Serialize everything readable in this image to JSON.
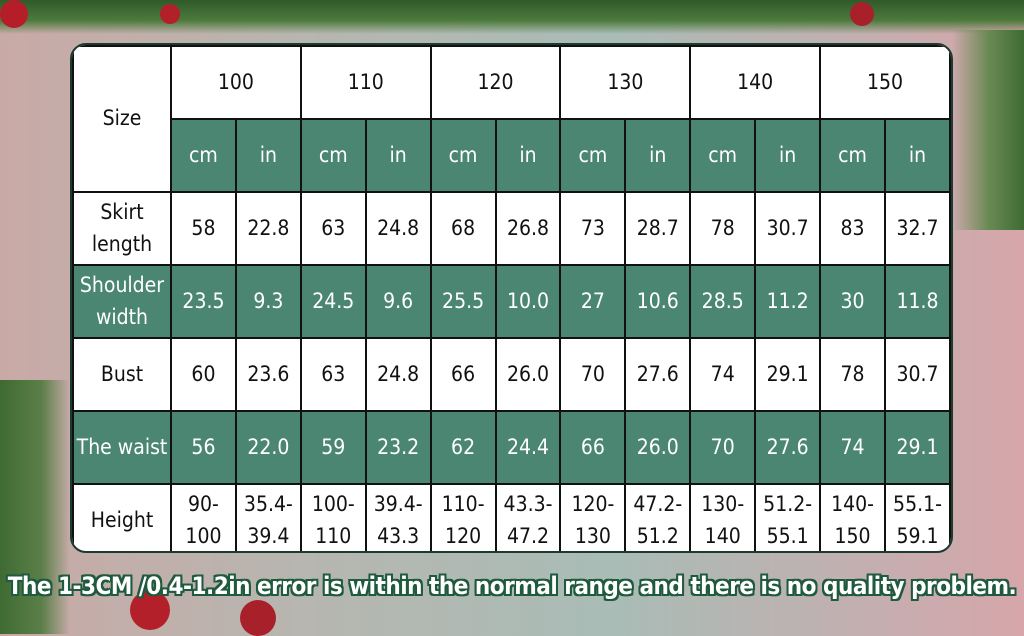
{
  "colors": {
    "header_green": "#4a8672",
    "border": "#111111"
  },
  "table": {
    "corner_label": "Size",
    "sizes": [
      "100",
      "110",
      "120",
      "130",
      "140",
      "150"
    ],
    "units": [
      "cm",
      "in"
    ],
    "rows": [
      {
        "label": "Skirt length",
        "values": [
          "58",
          "22.8",
          "63",
          "24.8",
          "68",
          "26.8",
          "73",
          "28.7",
          "78",
          "30.7",
          "83",
          "32.7"
        ],
        "green": false
      },
      {
        "label": "Shoulder width",
        "values": [
          "23.5",
          "9.3",
          "24.5",
          "9.6",
          "25.5",
          "10.0",
          "27",
          "10.6",
          "28.5",
          "11.2",
          "30",
          "11.8"
        ],
        "green": true
      },
      {
        "label": "Bust",
        "values": [
          "60",
          "23.6",
          "63",
          "24.8",
          "66",
          "26.0",
          "70",
          "27.6",
          "74",
          "29.1",
          "78",
          "30.7"
        ],
        "green": false
      },
      {
        "label": "The waist",
        "values": [
          "56",
          "22.0",
          "59",
          "23.2",
          "62",
          "24.4",
          "66",
          "26.0",
          "70",
          "27.6",
          "74",
          "29.1"
        ],
        "green": true
      },
      {
        "label": "Height",
        "values": [
          "90-100",
          "35.4-39.4",
          "100-110",
          "39.4-43.3",
          "110-120",
          "43.3-47.2",
          "120-130",
          "47.2-51.2",
          "130-140",
          "51.2-55.1",
          "140-150",
          "55.1-59.1"
        ],
        "green": false
      }
    ]
  },
  "note": "The 1-3CM /0.4-1.2in error is within the normal range and there is no quality problem."
}
